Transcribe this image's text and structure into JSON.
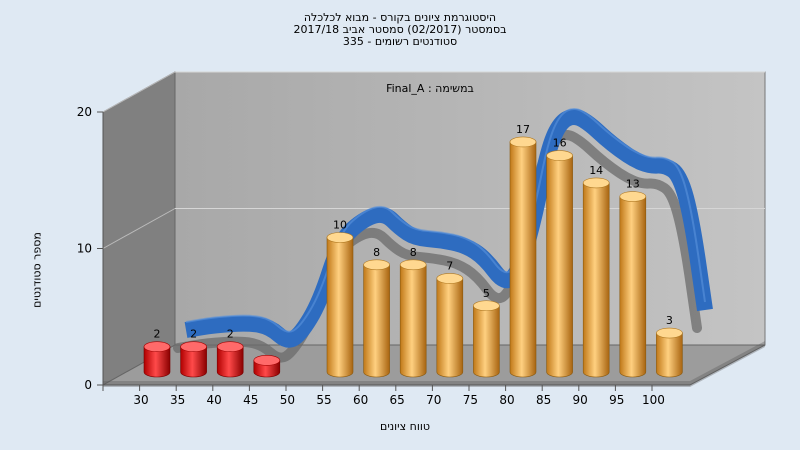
{
  "chart_data": {
    "type": "bar",
    "title_lines": [
      "היסטוגרמת ציונים בקורס - מבוא לכלכלה",
      "בסמסטר  (02/2017)  סמסטר אביב 2017/18",
      "סטודנטים רשומים - 335"
    ],
    "annotation": "במשימה : Final_A",
    "xlabel": "טווח ציונים",
    "ylabel": "מספר סטודנטים",
    "categories": [
      "30",
      "35",
      "40",
      "45",
      "50",
      "55",
      "60",
      "65",
      "70",
      "75",
      "80",
      "85",
      "90",
      "95",
      "100"
    ],
    "values": [
      2,
      2,
      2,
      1,
      null,
      10,
      8,
      8,
      7,
      5,
      17,
      16,
      14,
      13,
      3
    ],
    "value_labels": [
      "2",
      "2",
      "2",
      "",
      "",
      "10",
      "8",
      "8",
      "7",
      "5",
      "17",
      "16",
      "14",
      "13",
      "3"
    ],
    "ylim": [
      0,
      20
    ],
    "yticks": [
      "0",
      "10",
      "20"
    ],
    "colors": {
      "fail": "#e01010",
      "pass": "#f0a030",
      "curve": "#2e6cc0"
    },
    "grid": true
  }
}
